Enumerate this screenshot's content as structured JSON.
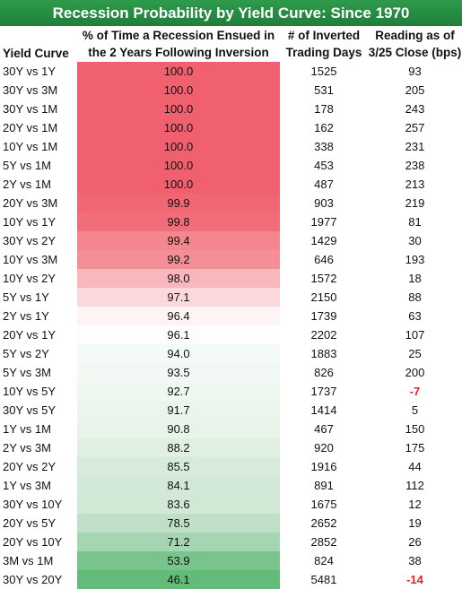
{
  "title": "Recession Probability by Yield Curve: Since 1970",
  "headers": {
    "curve": "Yield Curve",
    "pct_line1": "% of Time a Recession Ensued in",
    "pct_line2": "the 2 Years Following Inversion",
    "days_line1": "# of Inverted",
    "days_line2": "Trading Days",
    "reading_line1": "Reading as of",
    "reading_line2": "3/25 Close (bps)"
  },
  "colors": {
    "title_bg": "#23843f",
    "high": "#f0566a",
    "mid": "#ffffff",
    "low": "#63be7b",
    "negative_text": "#e0242a"
  },
  "rows": [
    {
      "curve": "30Y vs 1Y",
      "pct": "100.0",
      "days": "1525",
      "reading": "93",
      "bg": "#f0606f"
    },
    {
      "curve": "30Y vs 3M",
      "pct": "100.0",
      "days": "531",
      "reading": "205",
      "bg": "#f0606f"
    },
    {
      "curve": "30Y vs 1M",
      "pct": "100.0",
      "days": "178",
      "reading": "243",
      "bg": "#f0606f"
    },
    {
      "curve": "20Y vs 1M",
      "pct": "100.0",
      "days": "162",
      "reading": "257",
      "bg": "#f0606f"
    },
    {
      "curve": "10Y vs 1M",
      "pct": "100.0",
      "days": "338",
      "reading": "231",
      "bg": "#f0606f"
    },
    {
      "curve": "5Y vs 1M",
      "pct": "100.0",
      "days": "453",
      "reading": "238",
      "bg": "#f0606f"
    },
    {
      "curve": "2Y vs 1M",
      "pct": "100.0",
      "days": "487",
      "reading": "213",
      "bg": "#f0606f"
    },
    {
      "curve": "20Y vs 3M",
      "pct": "99.9",
      "days": "903",
      "reading": "219",
      "bg": "#f16674"
    },
    {
      "curve": "10Y vs 1Y",
      "pct": "99.8",
      "days": "1977",
      "reading": "81",
      "bg": "#f16d7a"
    },
    {
      "curve": "30Y vs 2Y",
      "pct": "99.4",
      "days": "1429",
      "reading": "30",
      "bg": "#f3868f"
    },
    {
      "curve": "10Y vs 3M",
      "pct": "99.2",
      "days": "646",
      "reading": "193",
      "bg": "#f48f98"
    },
    {
      "curve": "10Y vs 2Y",
      "pct": "98.0",
      "days": "1572",
      "reading": "18",
      "bg": "#f8b6bd"
    },
    {
      "curve": "5Y vs 1Y",
      "pct": "97.1",
      "days": "2150",
      "reading": "88",
      "bg": "#fbd8dc"
    },
    {
      "curve": "2Y vs 1Y",
      "pct": "96.4",
      "days": "1739",
      "reading": "63",
      "bg": "#fef4f5"
    },
    {
      "curve": "20Y vs 1Y",
      "pct": "96.1",
      "days": "2202",
      "reading": "107",
      "bg": "#fcfdfc"
    },
    {
      "curve": "5Y vs 2Y",
      "pct": "94.0",
      "days": "1883",
      "reading": "25",
      "bg": "#f4faf5"
    },
    {
      "curve": "5Y vs 3M",
      "pct": "93.5",
      "days": "826",
      "reading": "200",
      "bg": "#f2f8f3"
    },
    {
      "curve": "10Y vs 5Y",
      "pct": "92.7",
      "days": "1737",
      "reading": "-7",
      "bg": "#eff7f1",
      "negative": true
    },
    {
      "curve": "30Y vs 5Y",
      "pct": "91.7",
      "days": "1414",
      "reading": "5",
      "bg": "#ebf5ed"
    },
    {
      "curve": "1Y vs 1M",
      "pct": "90.8",
      "days": "467",
      "reading": "150",
      "bg": "#e8f4ea"
    },
    {
      "curve": "2Y vs 3M",
      "pct": "88.2",
      "days": "920",
      "reading": "175",
      "bg": "#dfefe2"
    },
    {
      "curve": "20Y vs 2Y",
      "pct": "85.5",
      "days": "1916",
      "reading": "44",
      "bg": "#d6ebdb"
    },
    {
      "curve": "1Y vs 3M",
      "pct": "84.1",
      "days": "891",
      "reading": "112",
      "bg": "#d1e9d6"
    },
    {
      "curve": "30Y vs 10Y",
      "pct": "83.6",
      "days": "1675",
      "reading": "12",
      "bg": "#d0e8d4"
    },
    {
      "curve": "20Y vs 5Y",
      "pct": "78.5",
      "days": "2652",
      "reading": "19",
      "bg": "#bfe0c6"
    },
    {
      "curve": "20Y vs 10Y",
      "pct": "71.2",
      "days": "2852",
      "reading": "26",
      "bg": "#a6d5b2"
    },
    {
      "curve": "3M vs 1M",
      "pct": "53.9",
      "days": "824",
      "reading": "38",
      "bg": "#79c48d"
    },
    {
      "curve": "30Y vs 20Y",
      "pct": "46.1",
      "days": "5481",
      "reading": "-14",
      "bg": "#63bb79",
      "negative": true
    }
  ]
}
